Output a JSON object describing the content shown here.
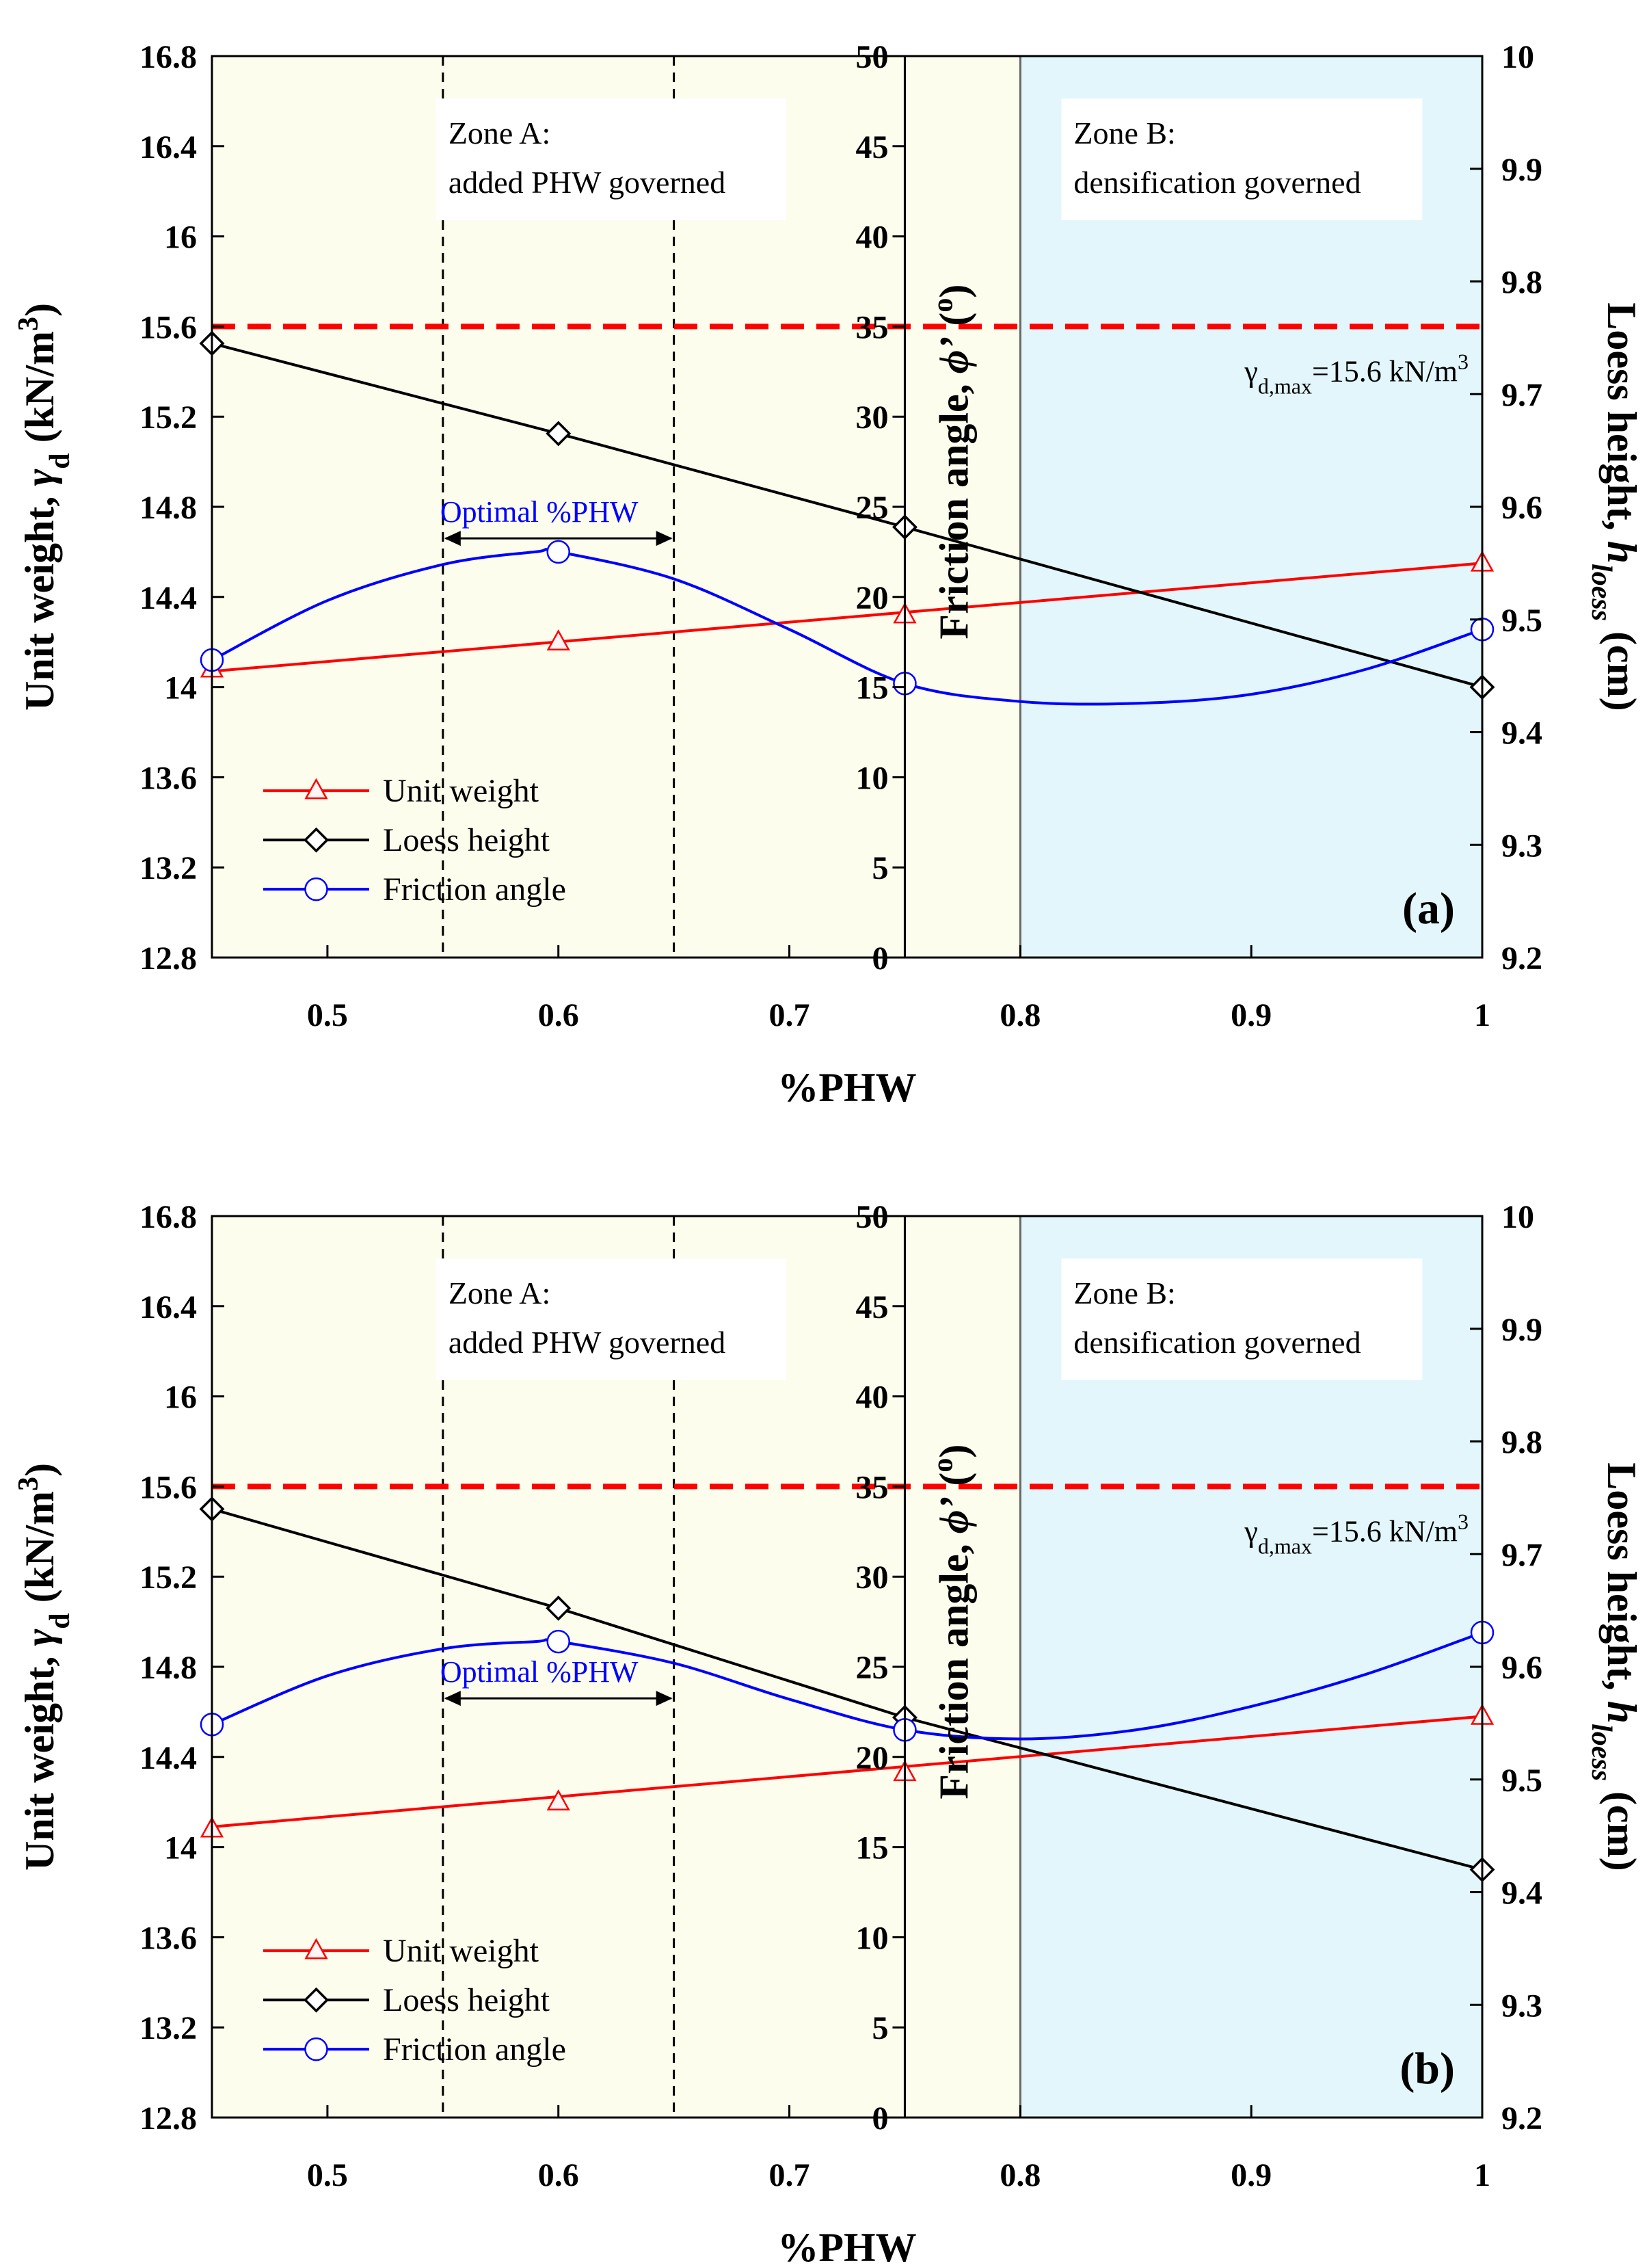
{
  "chart_data": [
    {
      "type": "line",
      "panel_label": "(a)",
      "xlabel": "%PHW",
      "ylabel_left": {
        "prefix": "Unit weight, ",
        "symbol": "γ",
        "sub": "d",
        "unit_pre": " (kN/m",
        "sup": "3",
        "unit_post": ")"
      },
      "ylabel_mid": {
        "prefix": "Friction angle, ",
        "symbol": "ϕ’",
        "unit_pre": " (",
        "sup": "o",
        "unit_post": ")"
      },
      "ylabel_right": {
        "prefix": "Loess height, ",
        "symbol": "h",
        "sub": "loess",
        "unit": " (cm)"
      },
      "xlim": [
        0.45,
        1.0
      ],
      "ylim_left": [
        12.8,
        16.8
      ],
      "ylim_mid": [
        0,
        50
      ],
      "ylim_right": [
        9.2,
        10.0
      ],
      "x_ticks": [
        "0.5",
        "0.6",
        "0.7",
        "0.8",
        "0.9",
        "1"
      ],
      "y_left_ticks": [
        "12.8",
        "13.2",
        "13.6",
        "14",
        "14.4",
        "14.8",
        "15.2",
        "15.6",
        "16",
        "16.4",
        "16.8"
      ],
      "y_mid_ticks": [
        "0",
        "5",
        "10",
        "15",
        "20",
        "25",
        "30",
        "35",
        "40",
        "45",
        "50"
      ],
      "y_right_ticks": [
        "9.2",
        "9.3",
        "9.4",
        "9.5",
        "9.6",
        "9.7",
        "9.8",
        "9.9",
        "10"
      ],
      "zones": {
        "zone_a": {
          "x_range": [
            0.45,
            0.8
          ],
          "line1": "Zone A:",
          "line2": "added PHW governed",
          "color": "#fdfdee"
        },
        "zone_b": {
          "x_range": [
            0.8,
            1.0
          ],
          "line1": "Zone B:",
          "line2": "densification governed",
          "color": "#e2f6fb"
        },
        "dividers": [
          0.75,
          0.8
        ]
      },
      "optimal_range": {
        "x": [
          0.55,
          0.65
        ],
        "label": "Optimal %PHW"
      },
      "max_line": {
        "value": 15.6,
        "label_symbol": "γ",
        "label_sub": "d,max",
        "label_rest": "=15.6 kN/m",
        "label_sup": "3",
        "color": "#ff0000"
      },
      "series": [
        {
          "name": "Unit weight",
          "axis": "left",
          "color": "#ff0000",
          "marker": "triangle",
          "x": [
            0.45,
            0.6,
            0.75,
            1.0
          ],
          "values": [
            14.08,
            14.2,
            14.32,
            14.55
          ],
          "fit_x": [
            0.45,
            1.0
          ],
          "fit_y": [
            14.07,
            14.55
          ]
        },
        {
          "name": "Loess height",
          "axis": "right",
          "color": "#000000",
          "marker": "diamond",
          "x": [
            0.45,
            0.6,
            0.75,
            1.0
          ],
          "values": [
            9.745,
            9.665,
            9.582,
            9.44
          ]
        },
        {
          "name": "Friction angle",
          "axis": "mid",
          "color": "#0000ff",
          "marker": "circle",
          "x": [
            0.45,
            0.6,
            0.75,
            1.0
          ],
          "values": [
            16.5,
            22.5,
            15.2,
            18.2
          ],
          "curve": [
            [
              0.45,
              16.5
            ],
            [
              0.5,
              19.8
            ],
            [
              0.55,
              21.8
            ],
            [
              0.59,
              22.5
            ],
            [
              0.6,
              22.5
            ],
            [
              0.65,
              21.0
            ],
            [
              0.7,
              18.2
            ],
            [
              0.75,
              15.2
            ],
            [
              0.8,
              14.2
            ],
            [
              0.85,
              14.1
            ],
            [
              0.9,
              14.6
            ],
            [
              0.95,
              16.0
            ],
            [
              1.0,
              18.2
            ]
          ]
        }
      ]
    },
    {
      "type": "line",
      "panel_label": "(b)",
      "xlabel": "%PHW",
      "ylabel_left": {
        "prefix": "Unit weight, ",
        "symbol": "γ",
        "sub": "d",
        "unit_pre": " (kN/m",
        "sup": "3",
        "unit_post": ")"
      },
      "ylabel_mid": {
        "prefix": "Friction angle, ",
        "symbol": "ϕ’",
        "unit_pre": " (",
        "sup": "o",
        "unit_post": ")"
      },
      "ylabel_right": {
        "prefix": "Loess height, ",
        "symbol": "h",
        "sub": "loess",
        "unit": " (cm)"
      },
      "xlim": [
        0.45,
        1.0
      ],
      "ylim_left": [
        12.8,
        16.8
      ],
      "ylim_mid": [
        0,
        50
      ],
      "ylim_right": [
        9.2,
        10.0
      ],
      "x_ticks": [
        "0.5",
        "0.6",
        "0.7",
        "0.8",
        "0.9",
        "1"
      ],
      "y_left_ticks": [
        "12.8",
        "13.2",
        "13.6",
        "14",
        "14.4",
        "14.8",
        "15.2",
        "15.6",
        "16",
        "16.4",
        "16.8"
      ],
      "y_mid_ticks": [
        "0",
        "5",
        "10",
        "15",
        "20",
        "25",
        "30",
        "35",
        "40",
        "45",
        "50"
      ],
      "y_right_ticks": [
        "9.2",
        "9.3",
        "9.4",
        "9.5",
        "9.6",
        "9.7",
        "9.8",
        "9.9",
        "10"
      ],
      "zones": {
        "zone_a": {
          "x_range": [
            0.45,
            0.8
          ],
          "line1": "Zone A:",
          "line2": "added PHW governed",
          "color": "#fdfdee"
        },
        "zone_b": {
          "x_range": [
            0.8,
            1.0
          ],
          "line1": "Zone B:",
          "line2": "densification governed",
          "color": "#e2f6fb"
        },
        "dividers": [
          0.75,
          0.8
        ]
      },
      "optimal_range": {
        "x": [
          0.55,
          0.65
        ],
        "label": "Optimal %PHW"
      },
      "max_line": {
        "value": 15.6,
        "label_symbol": "γ",
        "label_sub": "d,max",
        "label_rest": "=15.6 kN/m",
        "label_sup": "3",
        "color": "#ff0000"
      },
      "series": [
        {
          "name": "Unit weight",
          "axis": "left",
          "color": "#ff0000",
          "marker": "triangle",
          "x": [
            0.45,
            0.6,
            0.75,
            1.0
          ],
          "values": [
            14.08,
            14.2,
            14.33,
            14.58
          ],
          "fit_x": [
            0.45,
            1.0
          ],
          "fit_y": [
            14.09,
            14.58
          ]
        },
        {
          "name": "Loess height",
          "axis": "right",
          "color": "#000000",
          "marker": "diamond",
          "x": [
            0.45,
            0.6,
            0.75,
            1.0
          ],
          "values": [
            9.74,
            9.652,
            9.555,
            9.42
          ]
        },
        {
          "name": "Friction angle",
          "axis": "mid",
          "color": "#0000ff",
          "marker": "circle",
          "x": [
            0.45,
            0.6,
            0.75,
            1.0
          ],
          "values": [
            21.8,
            26.4,
            21.5,
            26.9
          ],
          "curve": [
            [
              0.45,
              21.8
            ],
            [
              0.5,
              24.5
            ],
            [
              0.55,
              26.0
            ],
            [
              0.59,
              26.4
            ],
            [
              0.6,
              26.4
            ],
            [
              0.65,
              25.2
            ],
            [
              0.7,
              23.2
            ],
            [
              0.75,
              21.5
            ],
            [
              0.8,
              21.0
            ],
            [
              0.85,
              21.5
            ],
            [
              0.9,
              22.8
            ],
            [
              0.95,
              24.6
            ],
            [
              1.0,
              26.9
            ]
          ]
        }
      ]
    }
  ]
}
